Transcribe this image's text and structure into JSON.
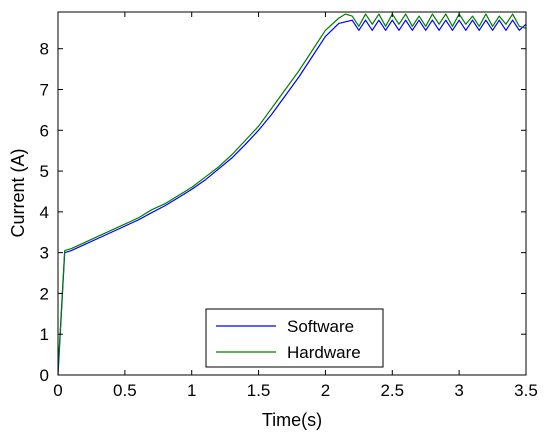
{
  "chart_data": {
    "type": "line",
    "title": "",
    "xlabel": "Time(s)",
    "ylabel": "Current (A)",
    "xlim": [
      0,
      3.5
    ],
    "ylim": [
      0,
      8.9
    ],
    "xticks": [
      "0",
      "0.5",
      "1",
      "1.5",
      "2",
      "2.5",
      "3",
      "3.5"
    ],
    "yticks": [
      "0",
      "1",
      "2",
      "3",
      "4",
      "5",
      "6",
      "7",
      "8"
    ],
    "grid": false,
    "legend_position": "bottom-center",
    "series": [
      {
        "name": "Software",
        "color": "#0000ff",
        "x": [
          0,
          0.05,
          0.1,
          0.2,
          0.3,
          0.4,
          0.5,
          0.6,
          0.7,
          0.8,
          0.9,
          1.0,
          1.1,
          1.2,
          1.3,
          1.4,
          1.5,
          1.6,
          1.7,
          1.8,
          1.9,
          2.0,
          2.1,
          2.2,
          2.25,
          2.3,
          2.35,
          2.4,
          2.45,
          2.5,
          2.55,
          2.6,
          2.65,
          2.7,
          2.75,
          2.8,
          2.85,
          2.9,
          2.95,
          3.0,
          3.05,
          3.1,
          3.15,
          3.2,
          3.25,
          3.3,
          3.35,
          3.4,
          3.45,
          3.5
        ],
        "y": [
          0,
          3.0,
          3.05,
          3.2,
          3.35,
          3.5,
          3.65,
          3.8,
          3.98,
          4.15,
          4.35,
          4.55,
          4.78,
          5.05,
          5.32,
          5.65,
          6.0,
          6.4,
          6.85,
          7.3,
          7.8,
          8.3,
          8.62,
          8.7,
          8.45,
          8.7,
          8.45,
          8.7,
          8.45,
          8.7,
          8.45,
          8.7,
          8.45,
          8.7,
          8.45,
          8.7,
          8.45,
          8.7,
          8.45,
          8.7,
          8.45,
          8.7,
          8.45,
          8.7,
          8.45,
          8.7,
          8.45,
          8.7,
          8.45,
          8.6
        ]
      },
      {
        "name": "Hardware",
        "color": "#008000",
        "x": [
          0,
          0.05,
          0.1,
          0.2,
          0.3,
          0.4,
          0.5,
          0.6,
          0.7,
          0.8,
          0.9,
          1.0,
          1.1,
          1.2,
          1.3,
          1.4,
          1.5,
          1.6,
          1.7,
          1.8,
          1.9,
          2.0,
          2.1,
          2.15,
          2.2,
          2.25,
          2.3,
          2.35,
          2.4,
          2.45,
          2.5,
          2.55,
          2.6,
          2.65,
          2.7,
          2.75,
          2.8,
          2.85,
          2.9,
          2.95,
          3.0,
          3.05,
          3.1,
          3.15,
          3.2,
          3.25,
          3.3,
          3.35,
          3.4,
          3.45,
          3.5
        ],
        "y": [
          0.1,
          3.05,
          3.1,
          3.25,
          3.4,
          3.55,
          3.7,
          3.85,
          4.05,
          4.2,
          4.4,
          4.6,
          4.85,
          5.1,
          5.4,
          5.75,
          6.1,
          6.55,
          7.0,
          7.45,
          7.95,
          8.45,
          8.75,
          8.85,
          8.8,
          8.55,
          8.85,
          8.6,
          8.85,
          8.55,
          8.85,
          8.6,
          8.85,
          8.55,
          8.8,
          8.55,
          8.85,
          8.6,
          8.85,
          8.55,
          8.85,
          8.6,
          8.8,
          8.55,
          8.85,
          8.55,
          8.8,
          8.6,
          8.85,
          8.55,
          8.5
        ]
      }
    ]
  }
}
